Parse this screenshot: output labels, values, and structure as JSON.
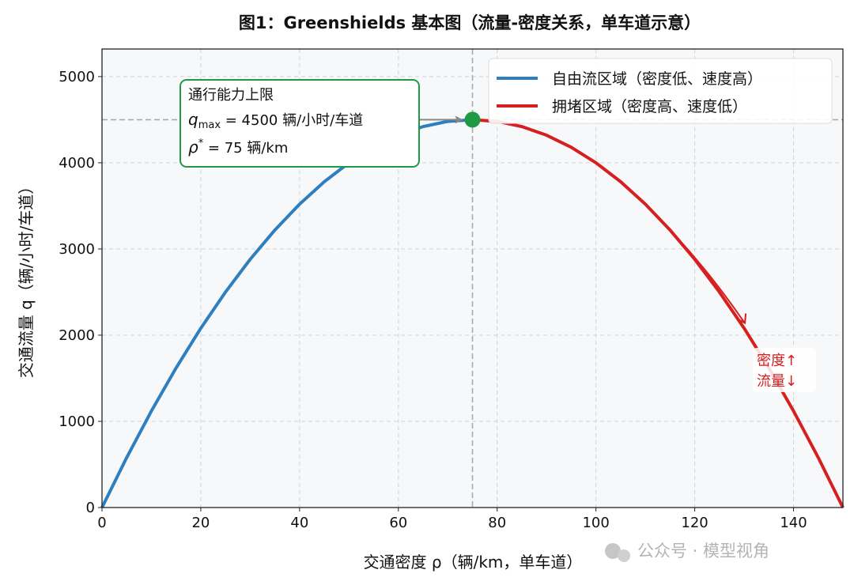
{
  "chart_data": {
    "type": "line",
    "title": "图1：Greenshields 基本图（流量-密度关系，单车道示意）",
    "xlabel": "交通密度 ρ（辆/km，单车道）",
    "ylabel": "交通流量 q（辆/小时/车道）",
    "xlim": [
      0,
      150
    ],
    "ylim": [
      0,
      5320
    ],
    "xticks": [
      0,
      20,
      40,
      60,
      80,
      100,
      120,
      140
    ],
    "yticks": [
      0,
      1000,
      2000,
      3000,
      4000,
      5000
    ],
    "grid": true,
    "legend_placement": "top-right",
    "series": [
      {
        "name": "自由流区域（密度低、速度高）",
        "color": "#2e7fc0",
        "x": [
          0,
          5,
          10,
          15,
          20,
          25,
          30,
          35,
          40,
          45,
          50,
          55,
          60,
          65,
          70,
          75
        ],
        "y": [
          0,
          580,
          1120,
          1620,
          2080,
          2500,
          2880,
          3220,
          3520,
          3780,
          4000,
          4180,
          4320,
          4420,
          4480,
          4500
        ]
      },
      {
        "name": "拥堵区域（密度高、速度低）",
        "color": "#d62020",
        "x": [
          75,
          80,
          85,
          90,
          95,
          100,
          105,
          110,
          115,
          120,
          125,
          130,
          135,
          140,
          145,
          150
        ],
        "y": [
          4500,
          4480,
          4420,
          4320,
          4180,
          4000,
          3780,
          3520,
          3220,
          2880,
          2500,
          2080,
          1620,
          1120,
          580,
          0
        ]
      }
    ],
    "capacity_point": {
      "x": 75,
      "y": 4500,
      "color": "#1e9a45"
    },
    "reference_lines": {
      "x": 75,
      "y": 4500
    },
    "annotations": {
      "capacity_box": {
        "line1": "通行能力上限",
        "line2_sym": "q",
        "line2_sub": "max",
        "line2_rest": " = 4500 辆/小时/车道",
        "line3_sym": "ρ",
        "line3_sup": "*",
        "line3_rest": " = 75 辆/km",
        "border_color": "#1e9a45"
      },
      "congestion_label": {
        "line1": "密度↑",
        "line2": "流量↓",
        "color": "#d62020",
        "arrow_from": [
          111,
          3450
        ],
        "arrow_to": [
          130,
          2150
        ]
      }
    }
  },
  "watermark": "公众号 · 模型视角"
}
